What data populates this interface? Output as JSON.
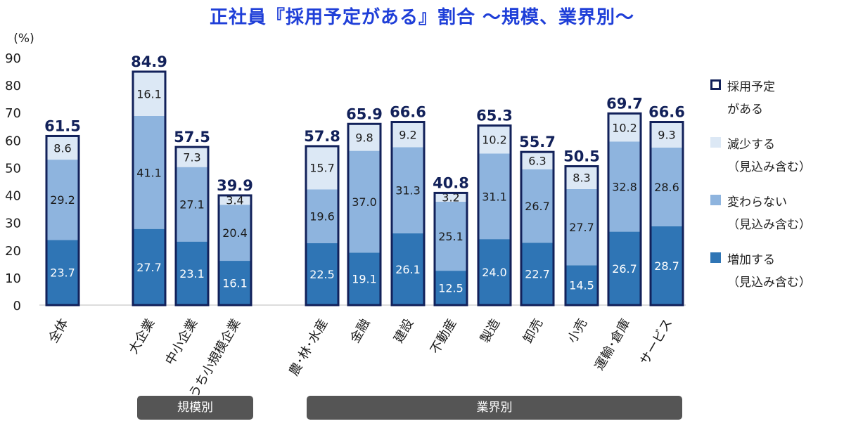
{
  "chart_data": {
    "type": "bar",
    "title": "正社員『採用予定がある』割合 ～規模、業界別～",
    "ylabel": "(%)",
    "ylim": [
      0,
      90
    ],
    "yticks": [
      0,
      10,
      20,
      30,
      40,
      50,
      60,
      70,
      80,
      90
    ],
    "stacked": true,
    "categories": [
      "全体",
      "大企業",
      "中小企業",
      "うち小規模企業",
      "農･林･水産",
      "金融",
      "建設",
      "不動産",
      "製造",
      "卸売",
      "小売",
      "運輸･倉庫",
      "サービス"
    ],
    "series": [
      {
        "name": "増加する\n（見込み含む）",
        "values": [
          23.7,
          27.7,
          23.1,
          16.1,
          22.5,
          19.1,
          26.1,
          12.5,
          24.0,
          22.7,
          14.5,
          26.7,
          28.7
        ]
      },
      {
        "name": "変わらない\n（見込み含む）",
        "values": [
          29.2,
          41.1,
          27.1,
          20.4,
          19.6,
          37.0,
          31.3,
          25.1,
          31.1,
          26.7,
          27.7,
          32.8,
          28.6
        ]
      },
      {
        "name": "減少する\n（見込み含む）",
        "values": [
          8.6,
          16.1,
          7.3,
          3.4,
          15.7,
          9.8,
          9.2,
          3.2,
          10.2,
          6.3,
          8.3,
          10.2,
          9.3
        ]
      }
    ],
    "totals": {
      "name": "採用予定\nがある",
      "values": [
        61.5,
        84.9,
        57.5,
        39.9,
        57.8,
        65.9,
        66.6,
        40.8,
        65.3,
        55.7,
        50.5,
        69.7,
        66.6
      ]
    },
    "value_labels": [
      [
        "23.7",
        "27.7",
        "23.1",
        "16.1",
        "22.5",
        "19.1",
        "26.1",
        "12.5",
        "24.0",
        "22.7",
        "14.5",
        "26.7",
        "28.7"
      ],
      [
        "29.2",
        "41.1",
        "27.1",
        "20.4",
        "19.6",
        "37.0",
        "31.3",
        "25.1",
        "31.1",
        "26.7",
        "27.7",
        "32.8",
        "28.6"
      ],
      [
        "8.6",
        "16.1",
        "7.3",
        "3.4",
        "15.7",
        "9.8",
        "9.2",
        "3.2",
        "10.2",
        "6.3",
        "8.3",
        "10.2",
        "9.3"
      ]
    ],
    "total_labels": [
      "61.5",
      "84.9",
      "57.5",
      "39.9",
      "57.8",
      "65.9",
      "66.6",
      "40.8",
      "65.3",
      "55.7",
      "50.5",
      "69.7",
      "66.6"
    ],
    "groups": [
      {
        "label": "規模別",
        "categories": [
          "大企業",
          "中小企業",
          "うち小規模企業"
        ]
      },
      {
        "label": "業界別",
        "categories": [
          "農･林･水産",
          "金融",
          "建設",
          "不動産",
          "製造",
          "卸売",
          "小売",
          "運輸･倉庫",
          "サービス"
        ]
      }
    ],
    "legend_position": "right",
    "grid": false
  },
  "colors": {
    "title": "#1f3fd8",
    "increase": "#2f75b5",
    "unchanged": "#8eb4de",
    "decrease": "#dce8f5",
    "outline": "#12215a",
    "total_text": "#12215a",
    "group_box": "#555555"
  }
}
